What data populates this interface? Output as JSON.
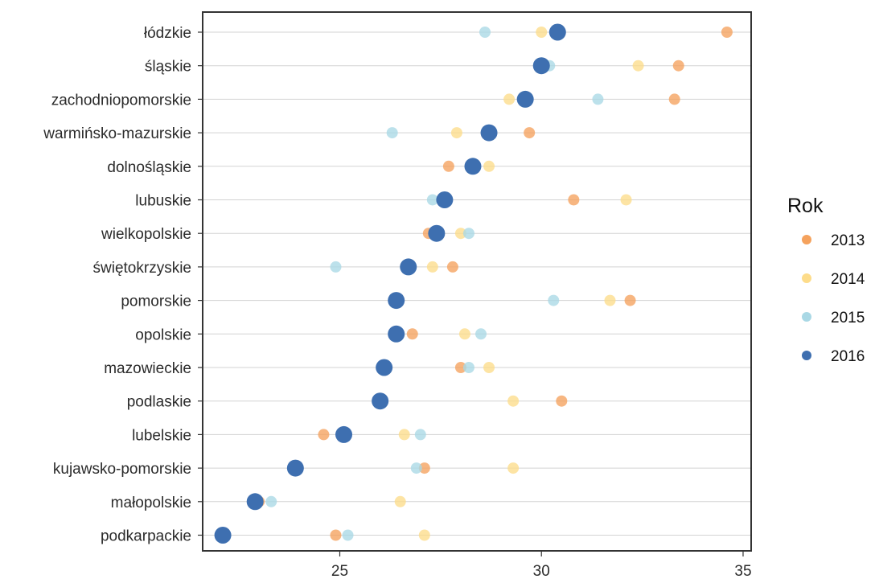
{
  "chart_data": {
    "type": "scatter",
    "title": "",
    "xlabel": "",
    "ylabel": "",
    "xlim": [
      21.6,
      35.2
    ],
    "x_ticks": [
      25,
      30,
      35
    ],
    "grid": "horizontal",
    "legend": {
      "title": "Rok",
      "position": "right"
    },
    "categories": [
      "łódzkie",
      "śląskie",
      "zachodniopomorskie",
      "warmińsko-mazurskie",
      "dolnośląskie",
      "lubuskie",
      "wielkopolskie",
      "świętokrzyskie",
      "pomorskie",
      "opolskie",
      "mazowieckie",
      "podlaskie",
      "lubelskie",
      "kujawsko-pomorskie",
      "małopolskie",
      "podkarpackie"
    ],
    "series": [
      {
        "name": "2013",
        "color": "#f5a25d",
        "values": [
          34.6,
          33.4,
          33.3,
          29.7,
          27.7,
          30.8,
          27.2,
          27.8,
          32.2,
          26.8,
          28.0,
          30.5,
          24.6,
          27.1,
          23.0,
          24.9
        ]
      },
      {
        "name": "2014",
        "color": "#fddc8a",
        "values": [
          30.0,
          32.4,
          29.2,
          27.9,
          28.7,
          32.1,
          28.0,
          27.3,
          31.7,
          28.1,
          28.7,
          29.3,
          26.6,
          29.3,
          26.5,
          27.1
        ]
      },
      {
        "name": "2015",
        "color": "#a9d8e5",
        "values": [
          28.6,
          30.2,
          31.4,
          26.3,
          null,
          27.3,
          28.2,
          24.9,
          30.3,
          28.5,
          28.2,
          null,
          27.0,
          26.9,
          23.3,
          25.2
        ]
      },
      {
        "name": "2016",
        "color": "#3e6fb0",
        "values": [
          30.4,
          30.0,
          29.6,
          28.7,
          28.3,
          27.6,
          27.4,
          26.7,
          26.4,
          26.4,
          26.1,
          26.0,
          25.1,
          23.9,
          22.9,
          22.1
        ]
      }
    ]
  }
}
